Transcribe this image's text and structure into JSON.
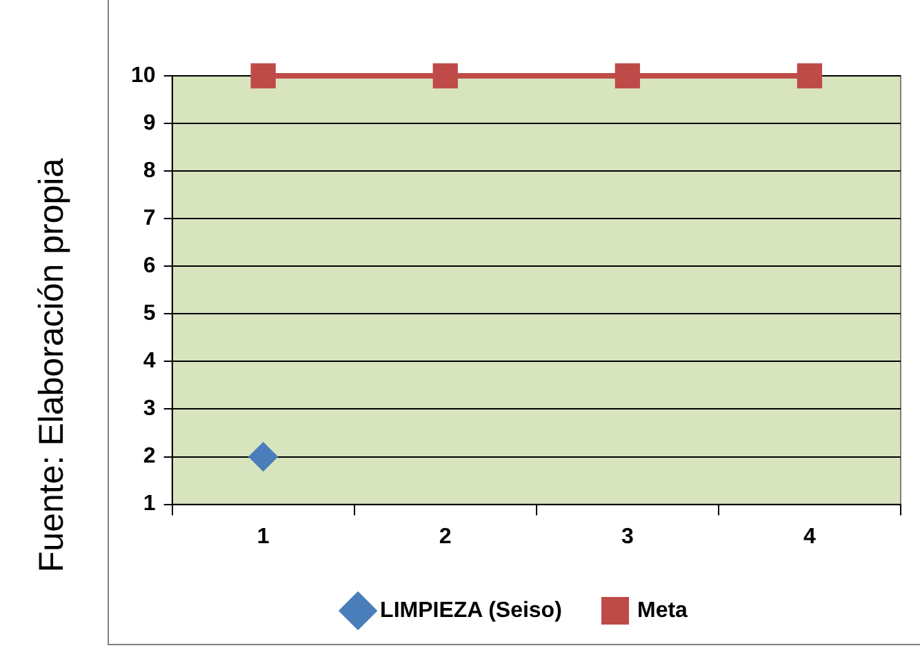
{
  "chart_data": {
    "type": "line",
    "categories": [
      "1",
      "2",
      "3",
      "4"
    ],
    "series": [
      {
        "name": "LIMPIEZA (Seiso)",
        "color": "#4a7ebb",
        "values": [
          2,
          null,
          null,
          null
        ],
        "marker": "diamond"
      },
      {
        "name": "Meta",
        "color": "#be4b48",
        "values": [
          10,
          10,
          10,
          10
        ],
        "marker": "square"
      }
    ],
    "ylim": [
      1,
      10
    ],
    "yticks": [
      1,
      2,
      3,
      4,
      5,
      6,
      7,
      8,
      9,
      10
    ],
    "grid": "y",
    "legend": "bottom",
    "line_style": "solid",
    "annotations": [
      "Fuente: Elaboración propia"
    ]
  }
}
